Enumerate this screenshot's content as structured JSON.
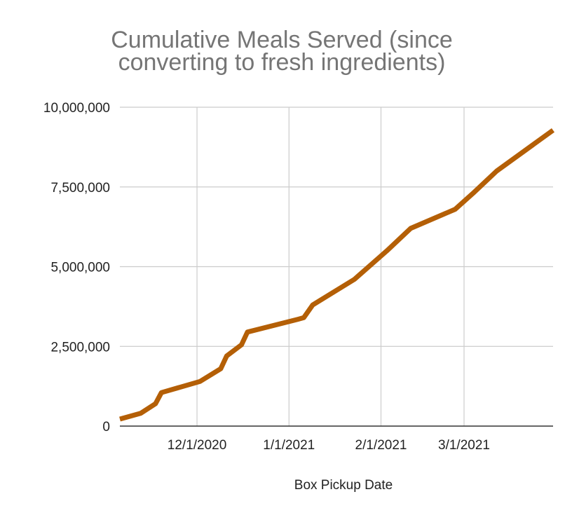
{
  "chart_data": {
    "type": "line",
    "title_lines": [
      "Cumulative Meals Served (since",
      "converting to fresh ingredients)"
    ],
    "xlabel": "Box Pickup Date",
    "ylabel": "",
    "xlim": [
      "2020-11-05",
      "2021-03-31"
    ],
    "ylim": [
      0,
      10000000
    ],
    "x_ticks": [
      {
        "date": "2020-12-01",
        "label": "12/1/2020"
      },
      {
        "date": "2021-01-01",
        "label": "1/1/2021"
      },
      {
        "date": "2021-02-01",
        "label": "2/1/2021"
      },
      {
        "date": "2021-03-01",
        "label": "3/1/2021"
      }
    ],
    "y_ticks": [
      {
        "value": 0,
        "label": "0"
      },
      {
        "value": 2500000,
        "label": "2,500,000"
      },
      {
        "value": 5000000,
        "label": "5,000,000"
      },
      {
        "value": 7500000,
        "label": "7,500,000"
      },
      {
        "value": 10000000,
        "label": "10,000,000"
      }
    ],
    "grid": true,
    "legend": "none",
    "series": [
      {
        "color": "#b45f06",
        "points": [
          [
            "2020-11-05",
            220000
          ],
          [
            "2020-11-12",
            400000
          ],
          [
            "2020-11-17",
            700000
          ],
          [
            "2020-11-19",
            1050000
          ],
          [
            "2020-12-02",
            1400000
          ],
          [
            "2020-12-09",
            1800000
          ],
          [
            "2020-12-11",
            2200000
          ],
          [
            "2020-12-16",
            2550000
          ],
          [
            "2020-12-18",
            2950000
          ],
          [
            "2021-01-04",
            3350000
          ],
          [
            "2021-01-06",
            3400000
          ],
          [
            "2021-01-09",
            3800000
          ],
          [
            "2021-01-23",
            4600000
          ],
          [
            "2021-02-03",
            5500000
          ],
          [
            "2021-02-11",
            6200000
          ],
          [
            "2021-02-26",
            6800000
          ],
          [
            "2021-03-04",
            7300000
          ],
          [
            "2021-03-12",
            8000000
          ],
          [
            "2021-03-31",
            9280000
          ]
        ]
      }
    ]
  }
}
